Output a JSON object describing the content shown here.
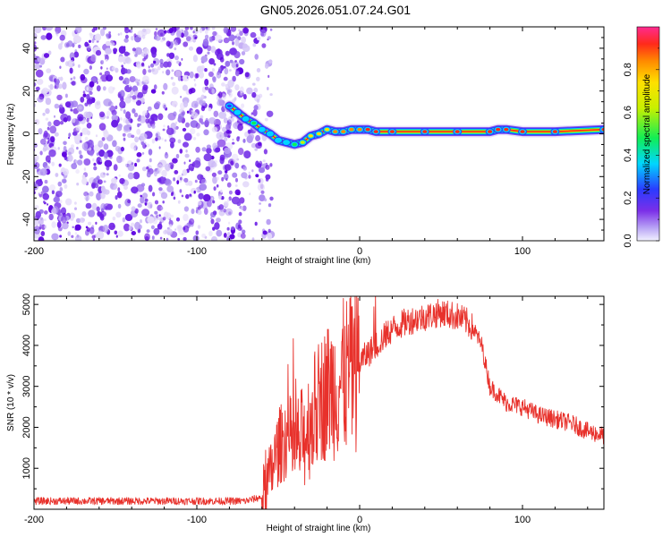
{
  "title": "GN05.2026.051.07.24.G01",
  "chart_data": [
    {
      "type": "heatmap",
      "name": "spectrogram",
      "xlabel": "Height of straight line (km)",
      "ylabel": "Frequency (Hz)",
      "xlim": [
        -200,
        150
      ],
      "ylim": [
        -50,
        50
      ],
      "xticks": [
        -200,
        -100,
        0,
        100
      ],
      "xtick_labels": [
        "-200",
        "-100",
        "0",
        "100"
      ],
      "yticks": [
        -40,
        -20,
        0,
        20,
        40
      ],
      "ytick_labels": [
        "-40",
        "-20",
        "0",
        "20",
        "40"
      ],
      "noise_region_km": [
        -200,
        -65
      ],
      "trace": {
        "x": [
          -80,
          -75,
          -70,
          -65,
          -60,
          -55,
          -50,
          -45,
          -40,
          -35,
          -30,
          -25,
          -20,
          -15,
          -10,
          -5,
          0,
          5,
          10,
          20,
          40,
          60,
          80,
          85,
          90,
          100,
          120,
          150
        ],
        "y": [
          13,
          10,
          7,
          5,
          2,
          0,
          -3,
          -4,
          -5,
          -4,
          -1,
          0,
          2,
          1,
          1,
          2,
          2,
          2,
          1,
          1,
          1,
          1,
          1,
          2,
          2,
          1,
          1,
          2
        ],
        "amplitude": [
          0.35,
          0.45,
          0.5,
          0.55,
          0.5,
          0.45,
          0.45,
          0.5,
          0.6,
          0.7,
          0.75,
          0.8,
          0.8,
          0.82,
          0.85,
          0.9,
          0.9,
          0.92,
          0.95,
          0.95,
          0.95,
          0.95,
          0.95,
          1.0,
          1.0,
          0.95,
          0.95,
          0.95
        ]
      },
      "colorbar": {
        "label": "Normalized spectral amplitude",
        "range": [
          0,
          1
        ],
        "ticks": [
          0.0,
          0.2,
          0.4,
          0.6,
          0.8
        ],
        "tick_labels": [
          "0.0",
          "0.2",
          "0.4",
          "0.6",
          "0.8"
        ]
      }
    },
    {
      "type": "line",
      "name": "snr",
      "xlabel": "Height of straight line (km)",
      "ylabel": "SNR (10 * v/v)",
      "xlim": [
        -200,
        150
      ],
      "ylim": [
        0,
        5200
      ],
      "xticks": [
        -200,
        -100,
        0,
        100
      ],
      "xtick_labels": [
        "-200",
        "-100",
        "0",
        "100"
      ],
      "yticks": [
        1000,
        2000,
        3000,
        4000,
        5000
      ],
      "ytick_labels": [
        "1000",
        "2000",
        "3000",
        "4000",
        "5000"
      ],
      "series": [
        {
          "name": "SNR",
          "color": "#e8312b",
          "x": [
            -200,
            -150,
            -100,
            -70,
            -60,
            -55,
            -50,
            -45,
            -40,
            -35,
            -30,
            -25,
            -20,
            -15,
            -10,
            -5,
            0,
            5,
            10,
            15,
            20,
            30,
            40,
            50,
            60,
            65,
            70,
            75,
            80,
            90,
            100,
            110,
            120,
            130,
            140,
            150
          ],
          "y": [
            200,
            200,
            200,
            200,
            300,
            800,
            1500,
            1800,
            1500,
            1700,
            2200,
            2600,
            2900,
            3000,
            3200,
            3400,
            3600,
            3800,
            4000,
            4200,
            4400,
            4600,
            4700,
            4800,
            4700,
            4600,
            4400,
            4000,
            3000,
            2600,
            2500,
            2300,
            2200,
            2100,
            1900,
            1800
          ]
        }
      ]
    }
  ]
}
